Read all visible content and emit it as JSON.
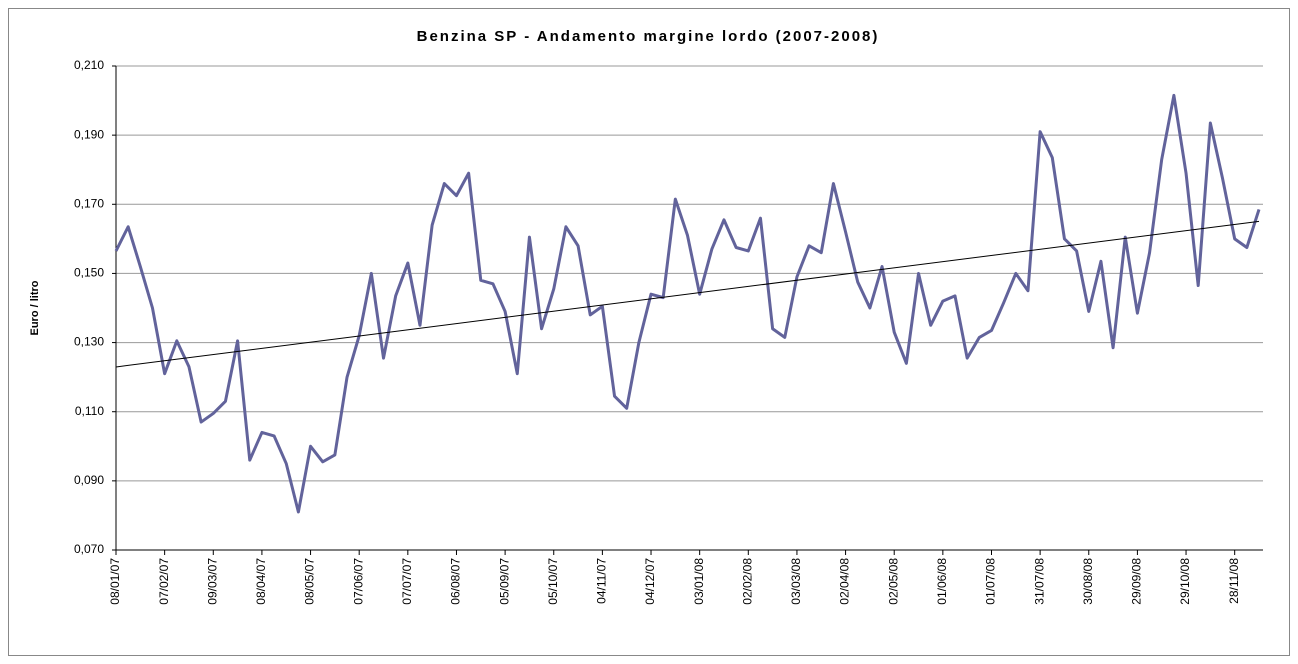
{
  "chart_data": {
    "type": "line",
    "title": "Benzina SP - Andamento margine lordo (2007-2008)",
    "y_label": "Euro / litro",
    "categories": [
      "08/01/07",
      null,
      null,
      null,
      "07/02/07",
      null,
      null,
      null,
      "09/03/07",
      null,
      null,
      null,
      "08/04/07",
      null,
      null,
      null,
      "08/05/07",
      null,
      null,
      null,
      "07/06/07",
      null,
      null,
      null,
      "07/07/07",
      null,
      null,
      null,
      "06/08/07",
      null,
      null,
      null,
      "05/09/07",
      null,
      null,
      null,
      "05/10/07",
      null,
      null,
      null,
      "04/11/07",
      null,
      null,
      null,
      "04/12/07",
      null,
      null,
      null,
      "03/01/08",
      null,
      null,
      null,
      "02/02/08",
      null,
      null,
      null,
      "03/03/08",
      null,
      null,
      null,
      "02/04/08",
      null,
      null,
      null,
      "02/05/08",
      null,
      null,
      null,
      "01/06/08",
      null,
      null,
      null,
      "01/07/08",
      null,
      null,
      null,
      "31/07/08",
      null,
      null,
      null,
      "30/08/08",
      null,
      null,
      null,
      "29/09/08",
      null,
      null,
      null,
      "29/10/08",
      null,
      null,
      null,
      "28/11/08",
      null,
      null
    ],
    "series": [
      {
        "color": "#62639b",
        "values": [
          0.1565,
          0.1635,
          0.152,
          0.14,
          0.121,
          0.1305,
          0.123,
          0.107,
          0.1095,
          0.113,
          0.1305,
          0.096,
          0.104,
          0.103,
          0.095,
          0.081,
          0.1,
          0.0955,
          0.0975,
          0.12,
          0.132,
          0.15,
          0.1255,
          0.1435,
          0.153,
          0.135,
          0.164,
          0.176,
          0.1725,
          0.179,
          0.148,
          0.147,
          0.139,
          0.121,
          0.1605,
          0.134,
          0.1455,
          0.1635,
          0.158,
          0.138,
          0.1405,
          0.1145,
          0.111,
          0.13,
          0.144,
          0.143,
          0.1715,
          0.161,
          0.144,
          0.157,
          0.1655,
          0.1575,
          0.1565,
          0.166,
          0.134,
          0.1315,
          0.149,
          0.158,
          0.156,
          0.176,
          0.162,
          0.1475,
          0.14,
          0.152,
          0.133,
          0.124,
          0.15,
          0.135,
          0.142,
          0.1435,
          0.1255,
          0.1315,
          0.1335,
          0.1415,
          0.15,
          0.145,
          0.191,
          0.1835,
          0.16,
          0.1565,
          0.139,
          0.1535,
          0.1285,
          0.1605,
          0.1385,
          0.156,
          0.183,
          0.2015,
          0.179,
          0.1465,
          0.1935,
          0.1775,
          0.16,
          0.1575,
          0.1685
        ]
      }
    ],
    "trendline": "linear",
    "ylim": [
      0.07,
      0.21
    ],
    "yticks": [
      {
        "value": 0.07,
        "label": "0,070"
      },
      {
        "value": 0.09,
        "label": "0,090"
      },
      {
        "value": 0.11,
        "label": "0,110"
      },
      {
        "value": 0.13,
        "label": "0,130"
      },
      {
        "value": 0.15,
        "label": "0,150"
      },
      {
        "value": 0.17,
        "label": "0,170"
      },
      {
        "value": 0.19,
        "label": "0,190"
      },
      {
        "value": 0.21,
        "label": "0,210"
      }
    ],
    "grid": true
  }
}
